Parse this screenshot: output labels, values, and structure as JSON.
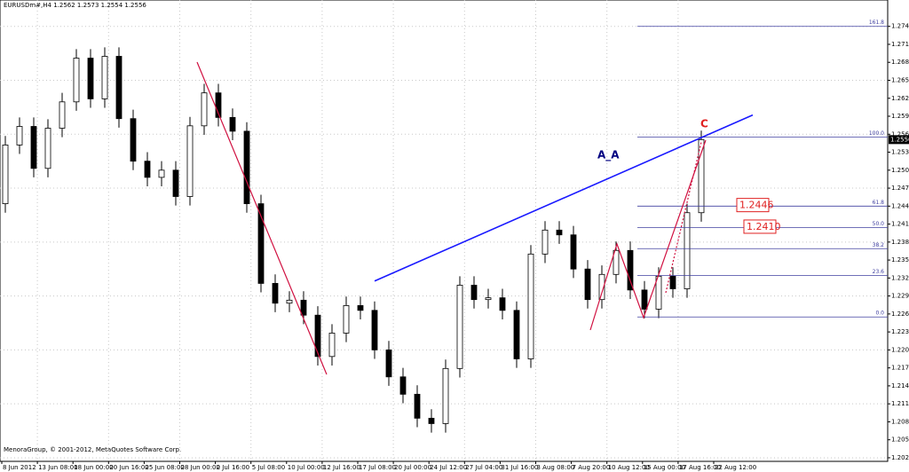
{
  "chart_data": {
    "type": "candlestick",
    "title": "EURUSDm#,H4  1.2562 1.2573 1.2554 1.2556",
    "footer": "MenoraGroup, © 2001-2012, MetaQuotes Software Corp.",
    "ylim": [
      1.2019,
      1.2789
    ],
    "yticks": [
      1.2025,
      1.2055,
      1.2085,
      1.2115,
      1.2145,
      1.2175,
      1.2205,
      1.2235,
      1.2265,
      1.2295,
      1.2325,
      1.2355,
      1.2385,
      1.2415,
      1.2445,
      1.2475,
      1.2505,
      1.2535,
      1.2565,
      1.2595,
      1.2625,
      1.2655,
      1.2685,
      1.2715,
      1.2745
    ],
    "x_labels": [
      "8 Jun 2012",
      "13 Jun 08:00",
      "18 Jun 00:00",
      "20 Jun 16:00",
      "25 Jun 08:00",
      "28 Jun 00:00",
      "2 Jul 16:00",
      "5 Jul 08:00",
      "10 Jul 00:00",
      "12 Jul 16:00",
      "17 Jul 08:00",
      "20 Jul 00:00",
      "24 Jul 12:00",
      "27 Jul 04:00",
      "31 Jul 16:00",
      "3 Aug 08:00",
      "7 Aug 20:00",
      "10 Aug 12:00",
      "15 Aug 00:00",
      "17 Aug 16:00",
      "22 Aug 12:00"
    ],
    "grid": true,
    "candles": [
      [
        1.2449,
        1.2562,
        1.2434,
        1.2547
      ],
      [
        1.2547,
        1.2593,
        1.2532,
        1.2578
      ],
      [
        1.2578,
        1.2593,
        1.2493,
        1.2508
      ],
      [
        1.2508,
        1.259,
        1.2493,
        1.2575
      ],
      [
        1.2575,
        1.2634,
        1.256,
        1.2619
      ],
      [
        1.2619,
        1.2707,
        1.2604,
        1.2692
      ],
      [
        1.2692,
        1.2707,
        1.2609,
        1.2624
      ],
      [
        1.2624,
        1.271,
        1.2609,
        1.2695
      ],
      [
        1.2695,
        1.271,
        1.2576,
        1.2591
      ],
      [
        1.2591,
        1.2606,
        1.2505,
        1.252
      ],
      [
        1.252,
        1.2535,
        1.2478,
        1.2493
      ],
      [
        1.2493,
        1.252,
        1.2478,
        1.2505
      ],
      [
        1.2505,
        1.252,
        1.2446,
        1.2461
      ],
      [
        1.2461,
        1.2594,
        1.2446,
        1.2579
      ],
      [
        1.2579,
        1.2649,
        1.2564,
        1.2634
      ],
      [
        1.2634,
        1.2649,
        1.2578,
        1.2593
      ],
      [
        1.2593,
        1.2608,
        1.2555,
        1.257
      ],
      [
        1.257,
        1.2585,
        1.2434,
        1.2449
      ],
      [
        1.2449,
        1.2464,
        1.2301,
        1.2316
      ],
      [
        1.2316,
        1.2331,
        1.2268,
        1.2283
      ],
      [
        1.2283,
        1.2303,
        1.2268,
        1.2288
      ],
      [
        1.2288,
        1.2303,
        1.2248,
        1.2263
      ],
      [
        1.2263,
        1.2278,
        1.2179,
        1.2194
      ],
      [
        1.2194,
        1.2248,
        1.2179,
        1.2233
      ],
      [
        1.2233,
        1.2294,
        1.2218,
        1.2279
      ],
      [
        1.2279,
        1.2294,
        1.2256,
        1.2271
      ],
      [
        1.2271,
        1.2286,
        1.219,
        1.2205
      ],
      [
        1.2205,
        1.222,
        1.2145,
        1.216
      ],
      [
        1.216,
        1.2175,
        1.2116,
        1.2131
      ],
      [
        1.2131,
        1.2146,
        1.2076,
        1.2091
      ],
      [
        1.2091,
        1.2106,
        1.2067,
        1.2082
      ],
      [
        1.2082,
        1.2189,
        1.2067,
        1.2174
      ],
      [
        1.2174,
        1.2328,
        1.2159,
        1.2313
      ],
      [
        1.2313,
        1.2328,
        1.2274,
        1.2289
      ],
      [
        1.2289,
        1.2307,
        1.2274,
        1.2292
      ],
      [
        1.2292,
        1.2307,
        1.2256,
        1.2271
      ],
      [
        1.2271,
        1.2286,
        1.2175,
        1.219
      ],
      [
        1.219,
        1.238,
        1.2175,
        1.2365
      ],
      [
        1.2365,
        1.242,
        1.235,
        1.2405
      ],
      [
        1.2405,
        1.242,
        1.2382,
        1.2397
      ],
      [
        1.2397,
        1.2412,
        1.2325,
        1.234
      ],
      [
        1.234,
        1.2355,
        1.2274,
        1.2289
      ],
      [
        1.2289,
        1.2346,
        1.2274,
        1.2331
      ],
      [
        1.2331,
        1.2386,
        1.2316,
        1.2371
      ],
      [
        1.2371,
        1.2386,
        1.229,
        1.2305
      ],
      [
        1.2305,
        1.232,
        1.2258,
        1.2273
      ],
      [
        1.2273,
        1.2343,
        1.2258,
        1.2328
      ],
      [
        1.2328,
        1.2343,
        1.2292,
        1.2307
      ],
      [
        1.2307,
        1.2449,
        1.2292,
        1.2434
      ],
      [
        1.2434,
        1.2571,
        1.2419,
        1.2556
      ]
    ],
    "fib_levels": [
      {
        "label": "161.8",
        "price": 1.2745
      },
      {
        "label": "100.0",
        "price": 1.256
      },
      {
        "label": "61.8",
        "price": 1.2445
      },
      {
        "label": "50.0",
        "price": 1.2409
      },
      {
        "label": "38.2",
        "price": 1.2374
      },
      {
        "label": "23.6",
        "price": 1.2329
      },
      {
        "label": "0.0",
        "price": 1.226
      }
    ],
    "trendline": {
      "color": "#1a1aff",
      "from": 1.232,
      "to": 1.2597
    },
    "annotations": [
      {
        "text": "A_A",
        "color": "#000080",
        "price": 1.253
      },
      {
        "text": "C",
        "color": "#e02020",
        "price": 1.2582
      }
    ],
    "price_boxes": [
      {
        "label": "1.2446",
        "price": 1.2446
      },
      {
        "label": "1.2410",
        "price": 1.241
      }
    ]
  }
}
